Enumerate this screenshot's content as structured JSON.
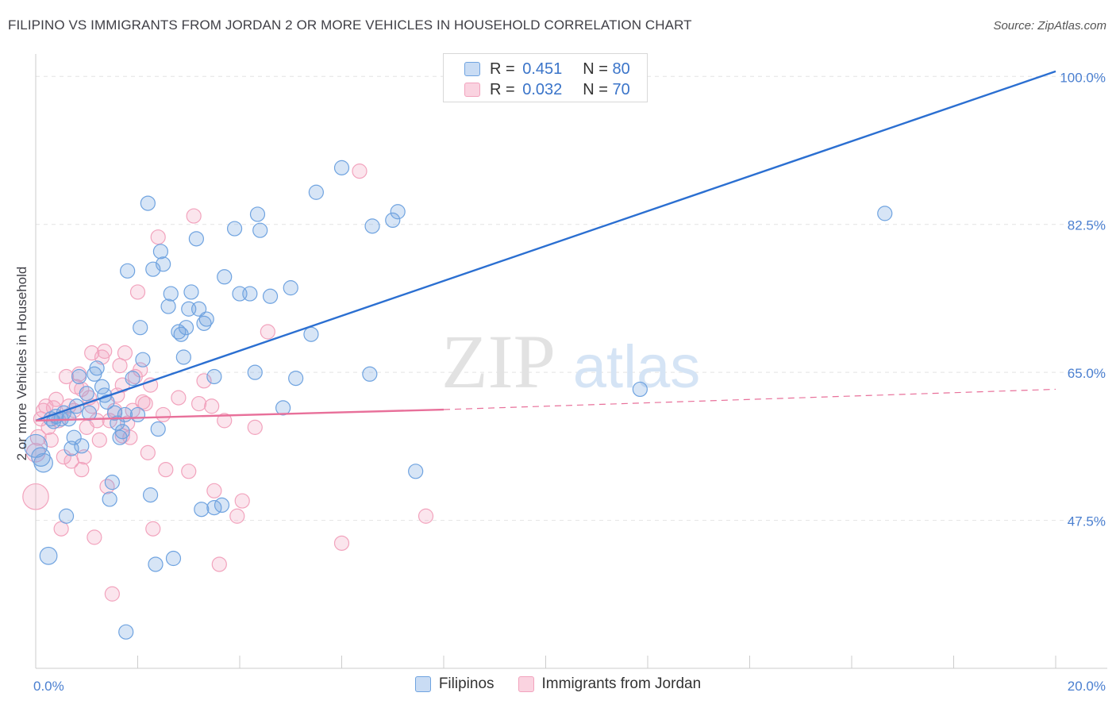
{
  "header": {
    "title": "FILIPINO VS IMMIGRANTS FROM JORDAN 2 OR MORE VEHICLES IN HOUSEHOLD CORRELATION CHART",
    "source": "Source: ZipAtlas.com"
  },
  "watermark": {
    "part1": "ZIP",
    "part2": "atlas"
  },
  "legend": {
    "items": [
      {
        "r_label": "R =",
        "r_value": "0.451",
        "n_label": "N =",
        "n_value": "80",
        "color": "#6fa3e0"
      },
      {
        "r_label": "R =",
        "r_value": "0.032",
        "n_label": "N =",
        "n_value": "70",
        "color": "#f2a3bd"
      }
    ]
  },
  "bottom_legend": [
    {
      "label": "Filipinos",
      "color": "#6fa3e0"
    },
    {
      "label": "Immigrants from Jordan",
      "color": "#f2a3bd"
    }
  ],
  "chart_data": {
    "type": "scatter",
    "title": "FILIPINO VS IMMIGRANTS FROM JORDAN 2 OR MORE VEHICLES IN HOUSEHOLD CORRELATION CHART",
    "xlabel": "",
    "ylabel": "2 or more Vehicles in Household",
    "xlim": [
      0,
      20
    ],
    "ylim": [
      30,
      102
    ],
    "x_ticks": [
      {
        "value": 0,
        "label": "0.0%"
      },
      {
        "value": 20,
        "label": "20.0%"
      }
    ],
    "y_ticks": [
      {
        "value": 47.5,
        "label": "47.5%"
      },
      {
        "value": 65.0,
        "label": "65.0%"
      },
      {
        "value": 82.5,
        "label": "82.5%"
      },
      {
        "value": 100.0,
        "label": "100.0%"
      }
    ],
    "grid": true,
    "legend_position": "top-center",
    "series": [
      {
        "name": "Filipinos",
        "color": "#6fa3e0",
        "trend": {
          "x": [
            0,
            20
          ],
          "y": [
            59.3,
            100.6
          ],
          "style": "solid",
          "color": "#2b6fd1"
        },
        "points": [
          {
            "x": 0.0,
            "y": 56.3,
            "s": 1.6
          },
          {
            "x": 0.1,
            "y": 55.0,
            "s": 1.3
          },
          {
            "x": 0.15,
            "y": 54.3,
            "s": 1.3
          },
          {
            "x": 0.25,
            "y": 43.3,
            "s": 1.2
          },
          {
            "x": 0.3,
            "y": 59.5,
            "s": 1
          },
          {
            "x": 0.35,
            "y": 59.2,
            "s": 1
          },
          {
            "x": 0.4,
            "y": 59.8,
            "s": 1
          },
          {
            "x": 0.5,
            "y": 59.5,
            "s": 1
          },
          {
            "x": 0.55,
            "y": 60.2,
            "s": 1
          },
          {
            "x": 0.6,
            "y": 48.0,
            "s": 1
          },
          {
            "x": 0.65,
            "y": 59.5,
            "s": 1
          },
          {
            "x": 0.7,
            "y": 56.0,
            "s": 1
          },
          {
            "x": 0.75,
            "y": 57.3,
            "s": 1
          },
          {
            "x": 0.8,
            "y": 61.0,
            "s": 1
          },
          {
            "x": 0.85,
            "y": 64.5,
            "s": 1
          },
          {
            "x": 0.9,
            "y": 56.3,
            "s": 1
          },
          {
            "x": 1.0,
            "y": 62.5,
            "s": 1
          },
          {
            "x": 1.05,
            "y": 60.2,
            "s": 1
          },
          {
            "x": 1.15,
            "y": 64.8,
            "s": 1
          },
          {
            "x": 1.2,
            "y": 65.5,
            "s": 1
          },
          {
            "x": 1.3,
            "y": 63.3,
            "s": 1
          },
          {
            "x": 1.35,
            "y": 62.3,
            "s": 1
          },
          {
            "x": 1.4,
            "y": 61.5,
            "s": 1
          },
          {
            "x": 1.45,
            "y": 50.0,
            "s": 1
          },
          {
            "x": 1.5,
            "y": 52.0,
            "s": 1
          },
          {
            "x": 1.55,
            "y": 60.2,
            "s": 1
          },
          {
            "x": 1.6,
            "y": 59.0,
            "s": 1
          },
          {
            "x": 1.65,
            "y": 57.3,
            "s": 1
          },
          {
            "x": 1.7,
            "y": 58.0,
            "s": 1
          },
          {
            "x": 1.75,
            "y": 60.0,
            "s": 1
          },
          {
            "x": 1.77,
            "y": 34.3,
            "s": 1
          },
          {
            "x": 1.8,
            "y": 77.0,
            "s": 1
          },
          {
            "x": 1.9,
            "y": 64.3,
            "s": 1
          },
          {
            "x": 2.0,
            "y": 60.0,
            "s": 1
          },
          {
            "x": 2.05,
            "y": 70.3,
            "s": 1
          },
          {
            "x": 2.1,
            "y": 66.5,
            "s": 1
          },
          {
            "x": 2.2,
            "y": 85.0,
            "s": 1
          },
          {
            "x": 2.25,
            "y": 50.5,
            "s": 1
          },
          {
            "x": 2.3,
            "y": 77.2,
            "s": 1
          },
          {
            "x": 2.35,
            "y": 42.3,
            "s": 1
          },
          {
            "x": 2.4,
            "y": 58.3,
            "s": 1
          },
          {
            "x": 2.45,
            "y": 79.3,
            "s": 1
          },
          {
            "x": 2.5,
            "y": 77.8,
            "s": 1
          },
          {
            "x": 2.6,
            "y": 72.8,
            "s": 1
          },
          {
            "x": 2.65,
            "y": 74.3,
            "s": 1
          },
          {
            "x": 2.7,
            "y": 43.0,
            "s": 1
          },
          {
            "x": 2.8,
            "y": 69.8,
            "s": 1
          },
          {
            "x": 2.85,
            "y": 69.5,
            "s": 1
          },
          {
            "x": 2.9,
            "y": 66.8,
            "s": 1
          },
          {
            "x": 2.95,
            "y": 70.3,
            "s": 1
          },
          {
            "x": 3.0,
            "y": 72.5,
            "s": 1
          },
          {
            "x": 3.05,
            "y": 74.5,
            "s": 1
          },
          {
            "x": 3.15,
            "y": 80.8,
            "s": 1
          },
          {
            "x": 3.2,
            "y": 72.5,
            "s": 1
          },
          {
            "x": 3.25,
            "y": 48.8,
            "s": 1
          },
          {
            "x": 3.3,
            "y": 70.8,
            "s": 1
          },
          {
            "x": 3.35,
            "y": 71.3,
            "s": 1
          },
          {
            "x": 3.5,
            "y": 64.5,
            "s": 1
          },
          {
            "x": 3.5,
            "y": 49.0,
            "s": 1
          },
          {
            "x": 3.65,
            "y": 49.3,
            "s": 1
          },
          {
            "x": 3.7,
            "y": 76.3,
            "s": 1
          },
          {
            "x": 3.9,
            "y": 82.0,
            "s": 1
          },
          {
            "x": 4.0,
            "y": 74.3,
            "s": 1
          },
          {
            "x": 4.2,
            "y": 74.3,
            "s": 1
          },
          {
            "x": 4.3,
            "y": 65.0,
            "s": 1
          },
          {
            "x": 4.35,
            "y": 83.7,
            "s": 1
          },
          {
            "x": 4.4,
            "y": 81.8,
            "s": 1
          },
          {
            "x": 4.6,
            "y": 74.0,
            "s": 1
          },
          {
            "x": 4.85,
            "y": 60.8,
            "s": 1
          },
          {
            "x": 5.0,
            "y": 75.0,
            "s": 1
          },
          {
            "x": 5.1,
            "y": 64.3,
            "s": 1
          },
          {
            "x": 5.4,
            "y": 69.5,
            "s": 1
          },
          {
            "x": 5.5,
            "y": 86.3,
            "s": 1
          },
          {
            "x": 6.0,
            "y": 89.2,
            "s": 1
          },
          {
            "x": 6.55,
            "y": 64.8,
            "s": 1
          },
          {
            "x": 6.6,
            "y": 82.3,
            "s": 1
          },
          {
            "x": 7.0,
            "y": 83.0,
            "s": 1
          },
          {
            "x": 7.1,
            "y": 84.0,
            "s": 1
          },
          {
            "x": 7.45,
            "y": 53.3,
            "s": 1
          },
          {
            "x": 11.85,
            "y": 63.0,
            "s": 1
          },
          {
            "x": 16.65,
            "y": 83.8,
            "s": 1
          }
        ]
      },
      {
        "name": "Immigrants from Jordan",
        "color": "#f2a3bd",
        "trend": {
          "x": [
            0,
            8.0
          ],
          "y": [
            59.3,
            60.6
          ],
          "style": "solid",
          "dashed_to": [
            20,
            63.0
          ],
          "color": "#e8709a"
        },
        "points": [
          {
            "x": 0.0,
            "y": 50.3,
            "s": 1.8
          },
          {
            "x": 0.0,
            "y": 55.5,
            "s": 1.3
          },
          {
            "x": 0.05,
            "y": 57.3,
            "s": 1.1
          },
          {
            "x": 0.1,
            "y": 59.5,
            "s": 1
          },
          {
            "x": 0.15,
            "y": 60.5,
            "s": 1
          },
          {
            "x": 0.2,
            "y": 61.0,
            "s": 1
          },
          {
            "x": 0.25,
            "y": 58.5,
            "s": 1
          },
          {
            "x": 0.3,
            "y": 57.0,
            "s": 1
          },
          {
            "x": 0.35,
            "y": 60.8,
            "s": 1
          },
          {
            "x": 0.4,
            "y": 61.8,
            "s": 1
          },
          {
            "x": 0.45,
            "y": 59.3,
            "s": 1
          },
          {
            "x": 0.5,
            "y": 46.5,
            "s": 1
          },
          {
            "x": 0.55,
            "y": 55.0,
            "s": 1
          },
          {
            "x": 0.6,
            "y": 64.5,
            "s": 1
          },
          {
            "x": 0.65,
            "y": 61.0,
            "s": 1
          },
          {
            "x": 0.7,
            "y": 54.5,
            "s": 1
          },
          {
            "x": 0.75,
            "y": 60.5,
            "s": 1
          },
          {
            "x": 0.8,
            "y": 63.3,
            "s": 1
          },
          {
            "x": 0.85,
            "y": 64.8,
            "s": 1
          },
          {
            "x": 0.9,
            "y": 53.5,
            "s": 1
          },
          {
            "x": 0.95,
            "y": 55.0,
            "s": 1
          },
          {
            "x": 1.0,
            "y": 58.5,
            "s": 1
          },
          {
            "x": 1.05,
            "y": 62.0,
            "s": 1
          },
          {
            "x": 1.1,
            "y": 61.0,
            "s": 1
          },
          {
            "x": 1.1,
            "y": 67.3,
            "s": 1
          },
          {
            "x": 1.15,
            "y": 45.5,
            "s": 1
          },
          {
            "x": 1.2,
            "y": 59.3,
            "s": 1
          },
          {
            "x": 1.25,
            "y": 57.0,
            "s": 1
          },
          {
            "x": 1.3,
            "y": 66.8,
            "s": 1
          },
          {
            "x": 1.35,
            "y": 67.5,
            "s": 1
          },
          {
            "x": 1.4,
            "y": 51.5,
            "s": 1
          },
          {
            "x": 1.45,
            "y": 59.3,
            "s": 1
          },
          {
            "x": 1.5,
            "y": 38.8,
            "s": 1
          },
          {
            "x": 1.55,
            "y": 60.5,
            "s": 1
          },
          {
            "x": 1.6,
            "y": 62.3,
            "s": 1
          },
          {
            "x": 1.65,
            "y": 65.8,
            "s": 1
          },
          {
            "x": 1.7,
            "y": 57.5,
            "s": 1
          },
          {
            "x": 1.75,
            "y": 67.3,
            "s": 1
          },
          {
            "x": 1.8,
            "y": 59.0,
            "s": 1
          },
          {
            "x": 1.85,
            "y": 57.3,
            "s": 1
          },
          {
            "x": 1.9,
            "y": 60.5,
            "s": 1
          },
          {
            "x": 1.95,
            "y": 64.5,
            "s": 1
          },
          {
            "x": 2.0,
            "y": 74.5,
            "s": 1
          },
          {
            "x": 2.05,
            "y": 65.3,
            "s": 1
          },
          {
            "x": 2.1,
            "y": 61.5,
            "s": 1
          },
          {
            "x": 2.15,
            "y": 61.3,
            "s": 1
          },
          {
            "x": 2.2,
            "y": 55.5,
            "s": 1
          },
          {
            "x": 2.3,
            "y": 46.5,
            "s": 1
          },
          {
            "x": 2.4,
            "y": 81.0,
            "s": 1
          },
          {
            "x": 2.5,
            "y": 60.0,
            "s": 1
          },
          {
            "x": 2.55,
            "y": 53.5,
            "s": 1
          },
          {
            "x": 2.8,
            "y": 62.0,
            "s": 1
          },
          {
            "x": 3.0,
            "y": 53.3,
            "s": 1
          },
          {
            "x": 3.1,
            "y": 83.5,
            "s": 1
          },
          {
            "x": 3.2,
            "y": 61.3,
            "s": 1
          },
          {
            "x": 3.3,
            "y": 64.0,
            "s": 1
          },
          {
            "x": 3.45,
            "y": 61.0,
            "s": 1
          },
          {
            "x": 3.5,
            "y": 51.0,
            "s": 1
          },
          {
            "x": 3.6,
            "y": 42.3,
            "s": 1
          },
          {
            "x": 3.7,
            "y": 59.3,
            "s": 1
          },
          {
            "x": 3.95,
            "y": 48.0,
            "s": 1
          },
          {
            "x": 4.05,
            "y": 49.8,
            "s": 1
          },
          {
            "x": 4.3,
            "y": 58.5,
            "s": 1
          },
          {
            "x": 4.55,
            "y": 69.8,
            "s": 1
          },
          {
            "x": 6.0,
            "y": 44.8,
            "s": 1
          },
          {
            "x": 6.35,
            "y": 88.8,
            "s": 1
          },
          {
            "x": 7.65,
            "y": 48.0,
            "s": 1
          },
          {
            "x": 2.25,
            "y": 63.5,
            "s": 1
          },
          {
            "x": 0.9,
            "y": 63.0,
            "s": 1
          },
          {
            "x": 1.7,
            "y": 63.5,
            "s": 1
          }
        ]
      }
    ]
  }
}
